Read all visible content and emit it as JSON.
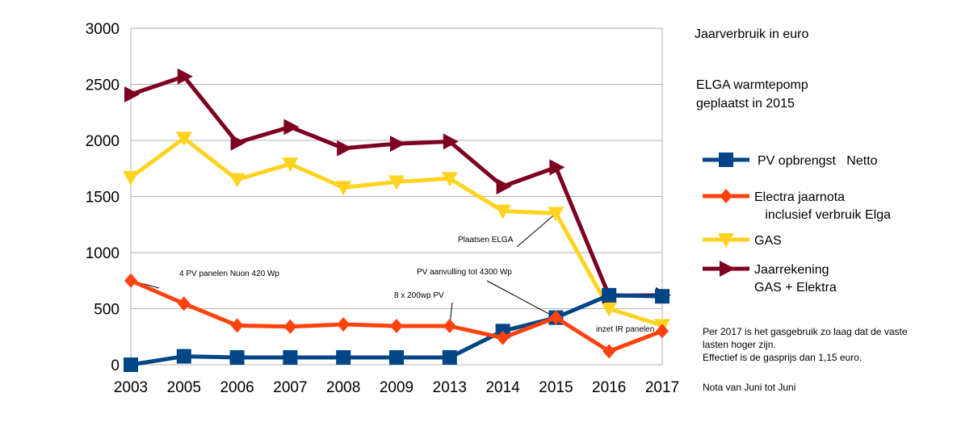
{
  "chart_data": {
    "type": "line",
    "title": "Jaarverbruik in euro",
    "subtitle": [
      "ELGA warmtepomp",
      "geplaatst in 2015"
    ],
    "categories": [
      "2003",
      "2005",
      "2006",
      "2007",
      "2008",
      "2009",
      "2013",
      "2014",
      "2015",
      "2016",
      "2017"
    ],
    "ylim": [
      0,
      3000
    ],
    "yticks": [
      0,
      500,
      1000,
      1500,
      2000,
      2500,
      3000
    ],
    "grid": true,
    "series": [
      {
        "name": "PV opbrengst   Netto",
        "lines": [
          "PV opbrengst   Netto"
        ],
        "color": "#004586",
        "marker": "square",
        "values": [
          0,
          75,
          65,
          65,
          65,
          65,
          65,
          300,
          420,
          620,
          610
        ]
      },
      {
        "name": "Electra jaarnota inclusief verbruik Elga",
        "lines": [
          "Electra jaarnota",
          "   inclusief verbruik Elga"
        ],
        "color": "#ff420e",
        "marker": "diamond",
        "values": [
          750,
          545,
          350,
          340,
          360,
          345,
          345,
          240,
          420,
          120,
          300
        ]
      },
      {
        "name": "GAS",
        "lines": [
          "GAS"
        ],
        "color": "#ffd320",
        "marker": "triangle-down",
        "values": [
          1670,
          2020,
          1650,
          1790,
          1580,
          1630,
          1660,
          1370,
          1350,
          500,
          350
        ]
      },
      {
        "name": "Jaarrekening GAS + Elektra",
        "lines": [
          "Jaarrekening",
          "GAS + Elektra"
        ],
        "color": "#7e0021",
        "marker": "triangle-right",
        "values": [
          2410,
          2570,
          1980,
          2120,
          1930,
          1970,
          1990,
          1590,
          1760,
          615,
          620
        ]
      }
    ],
    "annotations": [
      {
        "text": "4 PV panelen Nuon  420 Wp",
        "category": "2003",
        "value": 750
      },
      {
        "text": "8 x 200wp PV",
        "category": "2013",
        "value": 345
      },
      {
        "text": "PV aanvulling tot 4300 Wp",
        "category": "2015",
        "value": 420
      },
      {
        "text": "Plaatsen ELGA",
        "category": "2015",
        "value": 1350
      },
      {
        "text": "inzet IR panelen",
        "category": "2016",
        "value": 120
      }
    ],
    "notes": [
      "Per 2017 is het gasgebruik zo laag dat de vaste",
      "lasten hoger zijn.",
      "Effectief is de gasprijs dan 1,15 euro."
    ],
    "footnote": "Nota van Juni tot Juni"
  }
}
